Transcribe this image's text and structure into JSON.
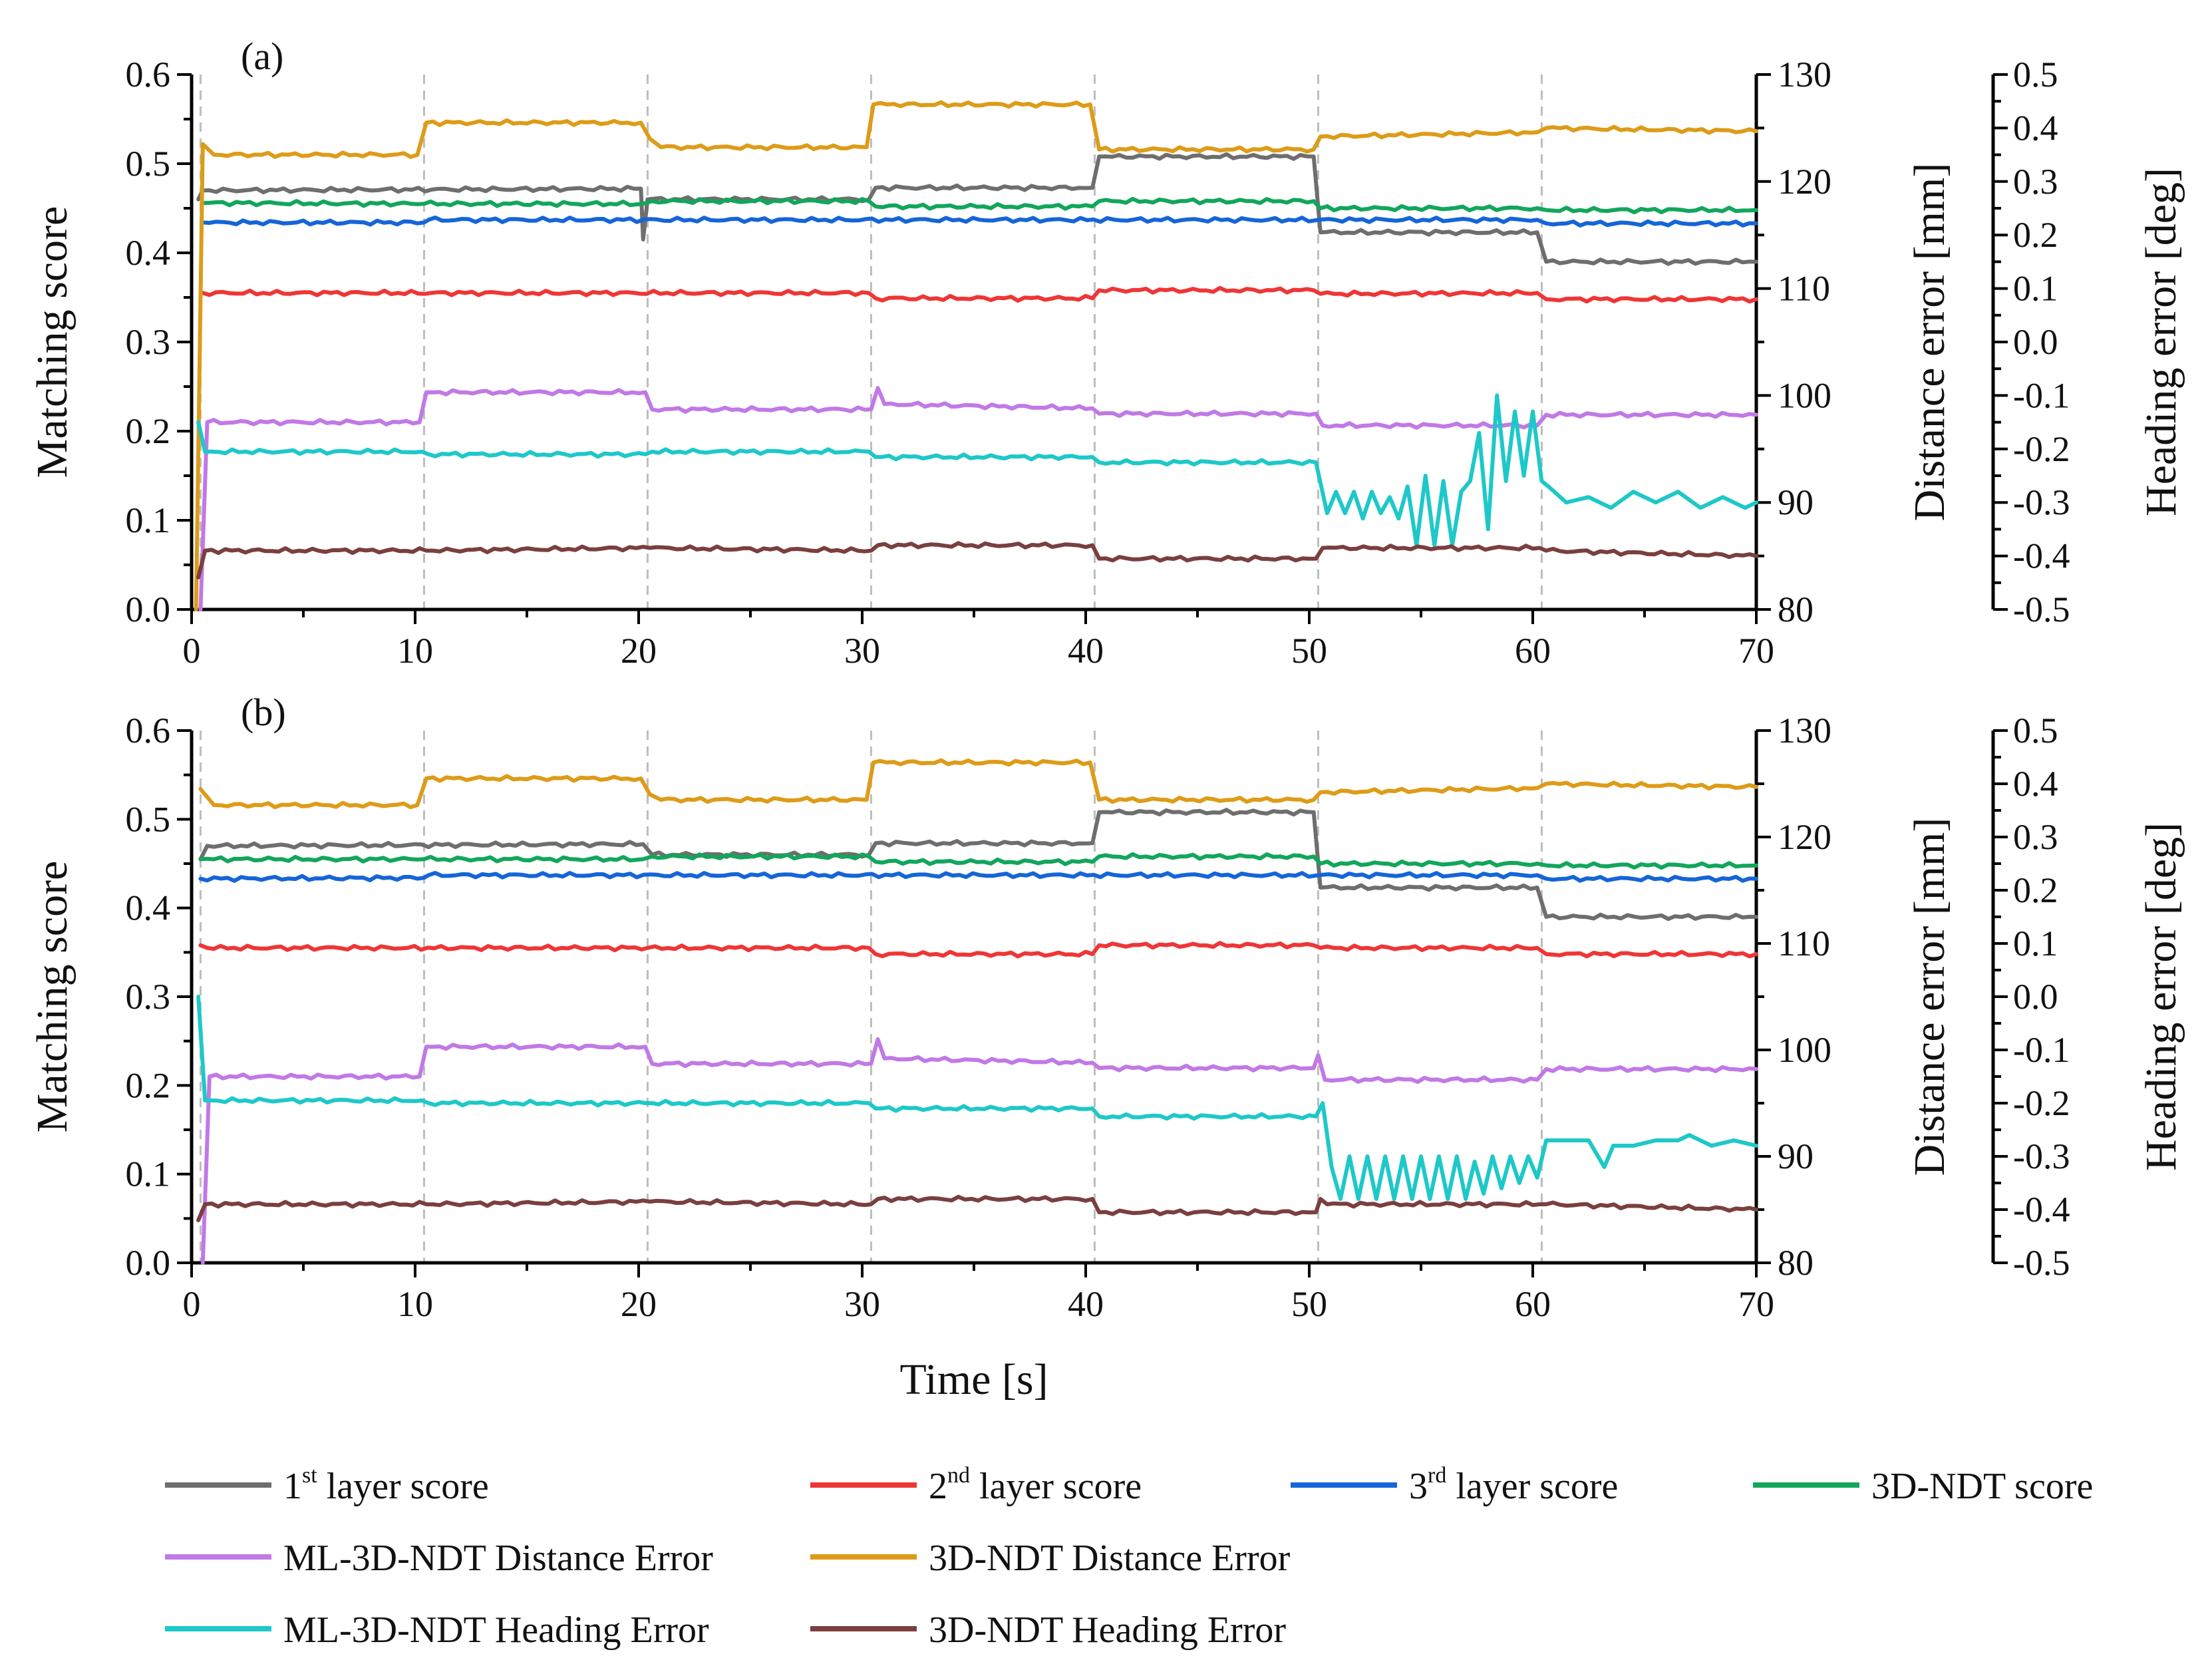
{
  "chart_data": [
    {
      "type": "line",
      "panel_label": "(a)",
      "xlim": [
        0,
        70
      ],
      "x_ticks": [
        "0",
        "10",
        "20",
        "30",
        "40",
        "50",
        "60",
        "70"
      ],
      "ylabel_left": "Matching score",
      "ylim_left": [
        0.0,
        0.6
      ],
      "y_left_ticks": [
        "0.0",
        "0.1",
        "0.2",
        "0.3",
        "0.4",
        "0.5",
        "0.6"
      ],
      "ylabel_right1": "Distance error [mm]",
      "ylim_right1": [
        80,
        130
      ],
      "y_right1_ticks": [
        "80",
        "90",
        "100",
        "110",
        "120",
        "130"
      ],
      "ylabel_right2": "Heading error [deg]",
      "ylim_right2": [
        -0.5,
        0.5
      ],
      "y_right2_ticks": [
        "-0.5",
        "-0.4",
        "-0.3",
        "-0.2",
        "-0.1",
        "0.0",
        "0.1",
        "0.2",
        "0.3",
        "0.4",
        "0.5"
      ],
      "segment_lines_x": [
        0.4,
        10.4,
        20.4,
        30.4,
        40.4,
        50.4,
        60.4
      ],
      "grid": false,
      "series": [
        {
          "name": "1st layer score",
          "axis": "left",
          "color": "#6e6e6e",
          "x": [
            0.3,
            0.5,
            20.1,
            20.2,
            20.4,
            30.3,
            30.6,
            40.3,
            40.6,
            50.2,
            50.5,
            60.2,
            60.6,
            70
          ],
          "y": [
            0.46,
            0.47,
            0.472,
            0.415,
            0.46,
            0.46,
            0.473,
            0.473,
            0.508,
            0.508,
            0.423,
            0.423,
            0.39,
            0.39
          ]
        },
        {
          "name": "2nd layer score",
          "axis": "left",
          "color": "#ee3636",
          "x": [
            0.5,
            30.3,
            30.6,
            40.3,
            40.6,
            50.2,
            50.5,
            60.2,
            60.6,
            70
          ],
          "y": [
            0.355,
            0.355,
            0.349,
            0.349,
            0.358,
            0.358,
            0.354,
            0.355,
            0.348,
            0.348
          ]
        },
        {
          "name": "3rd layer score",
          "axis": "left",
          "color": "#1565d8",
          "x": [
            0.5,
            10.4,
            10.6,
            60.2,
            60.6,
            70
          ],
          "y": [
            0.434,
            0.434,
            0.437,
            0.437,
            0.433,
            0.433
          ]
        },
        {
          "name": "3D-NDT score",
          "axis": "left",
          "color": "#12a65c",
          "x": [
            0.5,
            10.4,
            20.2,
            20.6,
            30.3,
            30.6,
            40.3,
            40.6,
            50.2,
            50.5,
            60.2,
            60.6,
            70
          ],
          "y": [
            0.456,
            0.455,
            0.455,
            0.458,
            0.458,
            0.452,
            0.452,
            0.458,
            0.458,
            0.45,
            0.45,
            0.448,
            0.448
          ]
        },
        {
          "name": "ML-3D-NDT Distance Error",
          "axis": "right1",
          "color": "#c179e6",
          "x": [
            0.4,
            0.7,
            10.2,
            10.5,
            20.3,
            20.6,
            30.4,
            30.7,
            31.0,
            40.3,
            40.6,
            50.3,
            50.6,
            60.2,
            60.6,
            70
          ],
          "y": [
            80,
            97.5,
            97.5,
            100.3,
            100.3,
            98.7,
            98.7,
            100.7,
            99.2,
            98.8,
            98.3,
            98.3,
            97.2,
            97.2,
            98.2,
            98.2
          ]
        },
        {
          "name": "3D-NDT Distance Error",
          "axis": "right1",
          "color": "#dd9c18",
          "x": [
            0.2,
            0.5,
            1.0,
            10.1,
            10.5,
            20.1,
            20.5,
            21.0,
            30.2,
            30.5,
            40.2,
            40.6,
            50.2,
            50.5,
            60.2,
            60.6,
            70
          ],
          "y": [
            80,
            123.5,
            122.5,
            122.5,
            125.5,
            125.5,
            124.0,
            123.2,
            123.2,
            127.2,
            127.2,
            123.0,
            123.0,
            124.2,
            124.6,
            125.0,
            124.7
          ]
        },
        {
          "name": "ML-3D-NDT Heading Error",
          "axis": "right2",
          "color": "#1ec8c8",
          "x": [
            0.3,
            0.6,
            10.3,
            10.6,
            20.3,
            20.6,
            30.3,
            30.6,
            40.3,
            40.6,
            50.3,
            50.8,
            51.2,
            51.6,
            52.0,
            52.4,
            52.8,
            53.2,
            53.6,
            54.0,
            54.4,
            54.8,
            55.2,
            55.6,
            56.0,
            56.4,
            56.8,
            57.2,
            57.6,
            58.0,
            58.4,
            58.8,
            59.2,
            59.6,
            60.0,
            60.4,
            60.7,
            61.5,
            62.5,
            63.5,
            64.5,
            65.5,
            66.5,
            67.5,
            68.5,
            69.5,
            70
          ],
          "y": [
            -0.15,
            -0.205,
            -0.205,
            -0.21,
            -0.21,
            -0.205,
            -0.205,
            -0.215,
            -0.215,
            -0.225,
            -0.225,
            -0.32,
            -0.28,
            -0.32,
            -0.28,
            -0.33,
            -0.28,
            -0.32,
            -0.29,
            -0.33,
            -0.27,
            -0.38,
            -0.25,
            -0.38,
            -0.26,
            -0.38,
            -0.28,
            -0.26,
            -0.17,
            -0.35,
            -0.1,
            -0.26,
            -0.13,
            -0.25,
            -0.13,
            -0.26,
            -0.27,
            -0.3,
            -0.29,
            -0.31,
            -0.28,
            -0.3,
            -0.28,
            -0.31,
            -0.29,
            -0.31,
            -0.3
          ]
        },
        {
          "name": "3D-NDT Heading Error",
          "axis": "right2",
          "color": "#7a3f3f",
          "x": [
            0.3,
            0.6,
            10.5,
            20.5,
            30.4,
            30.7,
            40.3,
            40.6,
            50.3,
            50.6,
            60.3,
            60.6,
            70
          ],
          "y": [
            -0.44,
            -0.39,
            -0.39,
            -0.385,
            -0.39,
            -0.38,
            -0.38,
            -0.405,
            -0.405,
            -0.385,
            -0.385,
            -0.39,
            -0.4
          ]
        }
      ]
    },
    {
      "type": "line",
      "panel_label": "(b)",
      "xlim": [
        0,
        70
      ],
      "x_ticks": [
        "0",
        "10",
        "20",
        "30",
        "40",
        "50",
        "60",
        "70"
      ],
      "xlabel": "Time [s]",
      "ylabel_left": "Matching score",
      "ylim_left": [
        0.0,
        0.6
      ],
      "y_left_ticks": [
        "0.0",
        "0.1",
        "0.2",
        "0.3",
        "0.4",
        "0.5",
        "0.6"
      ],
      "ylabel_right1": "Distance error [mm]",
      "ylim_right1": [
        80,
        130
      ],
      "y_right1_ticks": [
        "80",
        "90",
        "100",
        "110",
        "120",
        "130"
      ],
      "ylabel_right2": "Heading error [deg]",
      "ylim_right2": [
        -0.5,
        0.5
      ],
      "y_right2_ticks": [
        "-0.5",
        "-0.4",
        "-0.3",
        "-0.2",
        "-0.1",
        "0.0",
        "0.1",
        "0.2",
        "0.3",
        "0.4",
        "0.5"
      ],
      "segment_lines_x": [
        0.4,
        10.4,
        20.4,
        30.4,
        40.4,
        50.4,
        60.4
      ],
      "grid": false,
      "series": [
        {
          "name": "1st layer score",
          "axis": "left",
          "color": "#6e6e6e",
          "x": [
            0.4,
            0.7,
            20.2,
            20.6,
            30.3,
            30.6,
            40.3,
            40.6,
            50.2,
            50.5,
            60.2,
            60.6,
            70
          ],
          "y": [
            0.455,
            0.47,
            0.472,
            0.46,
            0.46,
            0.473,
            0.473,
            0.508,
            0.508,
            0.423,
            0.423,
            0.39,
            0.39
          ]
        },
        {
          "name": "2nd layer score",
          "axis": "left",
          "color": "#ee3636",
          "x": [
            0.4,
            0.7,
            30.3,
            30.6,
            40.3,
            40.6,
            50.2,
            50.5,
            60.2,
            60.6,
            70
          ],
          "y": [
            0.358,
            0.355,
            0.355,
            0.348,
            0.348,
            0.358,
            0.358,
            0.355,
            0.355,
            0.348,
            0.348
          ]
        },
        {
          "name": "3rd layer score",
          "axis": "left",
          "color": "#1565d8",
          "x": [
            0.4,
            10.4,
            10.6,
            60.2,
            60.6,
            70
          ],
          "y": [
            0.433,
            0.434,
            0.437,
            0.437,
            0.433,
            0.433
          ]
        },
        {
          "name": "3D-NDT score",
          "axis": "left",
          "color": "#12a65c",
          "x": [
            0.4,
            10.4,
            20.2,
            20.6,
            30.3,
            30.6,
            40.3,
            40.6,
            50.2,
            50.5,
            60.2,
            60.6,
            70
          ],
          "y": [
            0.455,
            0.455,
            0.455,
            0.458,
            0.458,
            0.452,
            0.452,
            0.458,
            0.458,
            0.45,
            0.45,
            0.448,
            0.448
          ]
        },
        {
          "name": "ML-3D-NDT Distance Error",
          "axis": "right1",
          "color": "#c179e6",
          "x": [
            0.5,
            0.8,
            10.2,
            10.5,
            20.3,
            20.6,
            30.4,
            30.7,
            31.0,
            40.3,
            40.6,
            50.2,
            50.4,
            50.7,
            60.2,
            60.6,
            70
          ],
          "y": [
            80,
            97.5,
            97.5,
            100.3,
            100.3,
            98.7,
            98.7,
            101.0,
            99.2,
            98.8,
            98.3,
            98.3,
            99.5,
            97.2,
            97.2,
            98.2,
            98.2
          ]
        },
        {
          "name": "3D-NDT Distance Error",
          "axis": "right1",
          "color": "#dd9c18",
          "x": [
            0.4,
            1.0,
            10.1,
            10.5,
            20.1,
            20.5,
            21.0,
            30.2,
            30.5,
            40.2,
            40.6,
            50.2,
            50.5,
            60.2,
            60.6,
            70
          ],
          "y": [
            124.5,
            123.0,
            123.0,
            125.5,
            125.5,
            124.0,
            123.5,
            123.5,
            127.0,
            127.0,
            123.5,
            123.5,
            124.2,
            124.6,
            125.0,
            124.7
          ]
        },
        {
          "name": "ML-3D-NDT Heading Error",
          "axis": "right2",
          "color": "#1ec8c8",
          "x": [
            0.3,
            0.6,
            10.3,
            10.6,
            20.3,
            20.6,
            30.3,
            30.6,
            40.3,
            40.6,
            50.3,
            50.6,
            51.0,
            51.4,
            51.8,
            52.2,
            52.6,
            53.0,
            53.4,
            53.8,
            54.2,
            54.6,
            55.0,
            55.4,
            55.8,
            56.2,
            56.6,
            57.0,
            57.4,
            57.8,
            58.2,
            58.6,
            59.0,
            59.4,
            59.8,
            60.2,
            60.6,
            61.5,
            62.5,
            63.2,
            63.6,
            64.5,
            65.5,
            66.5,
            67.0,
            68.0,
            69.0,
            70
          ],
          "y": [
            0.0,
            -0.195,
            -0.195,
            -0.2,
            -0.2,
            -0.2,
            -0.2,
            -0.21,
            -0.21,
            -0.225,
            -0.225,
            -0.2,
            -0.32,
            -0.38,
            -0.3,
            -0.38,
            -0.3,
            -0.38,
            -0.3,
            -0.38,
            -0.3,
            -0.38,
            -0.3,
            -0.38,
            -0.3,
            -0.38,
            -0.3,
            -0.38,
            -0.31,
            -0.37,
            -0.3,
            -0.36,
            -0.3,
            -0.35,
            -0.3,
            -0.34,
            -0.27,
            -0.27,
            -0.27,
            -0.32,
            -0.28,
            -0.28,
            -0.27,
            -0.27,
            -0.26,
            -0.28,
            -0.27,
            -0.28
          ]
        },
        {
          "name": "3D-NDT Heading Error",
          "axis": "right2",
          "color": "#7a3f3f",
          "x": [
            0.3,
            0.6,
            10.5,
            20.5,
            30.4,
            30.7,
            40.3,
            40.6,
            50.3,
            50.5,
            50.8,
            60.3,
            60.6,
            70
          ],
          "y": [
            -0.42,
            -0.39,
            -0.39,
            -0.385,
            -0.39,
            -0.38,
            -0.38,
            -0.405,
            -0.405,
            -0.38,
            -0.39,
            -0.39,
            -0.39,
            -0.4
          ]
        }
      ]
    }
  ],
  "legend": {
    "items": [
      {
        "prefix": "1",
        "sup": "st",
        "suffix": " layer score",
        "color": "#6e6e6e"
      },
      {
        "prefix": "2",
        "sup": "nd",
        "suffix": " layer score",
        "color": "#ee3636"
      },
      {
        "prefix": "3",
        "sup": "rd",
        "suffix": " layer score",
        "color": "#1565d8"
      },
      {
        "prefix": "3D-NDT score",
        "sup": "",
        "suffix": "",
        "color": "#12a65c"
      },
      {
        "prefix": "ML-3D-NDT Distance Error",
        "sup": "",
        "suffix": "",
        "color": "#c179e6"
      },
      {
        "prefix": "3D-NDT Distance Error",
        "sup": "",
        "suffix": "",
        "color": "#dd9c18"
      },
      {
        "prefix": "ML-3D-NDT Heading Error",
        "sup": "",
        "suffix": "",
        "color": "#1ec8c8"
      },
      {
        "prefix": "3D-NDT Heading Error",
        "sup": "",
        "suffix": "",
        "color": "#7a3f3f"
      }
    ]
  }
}
